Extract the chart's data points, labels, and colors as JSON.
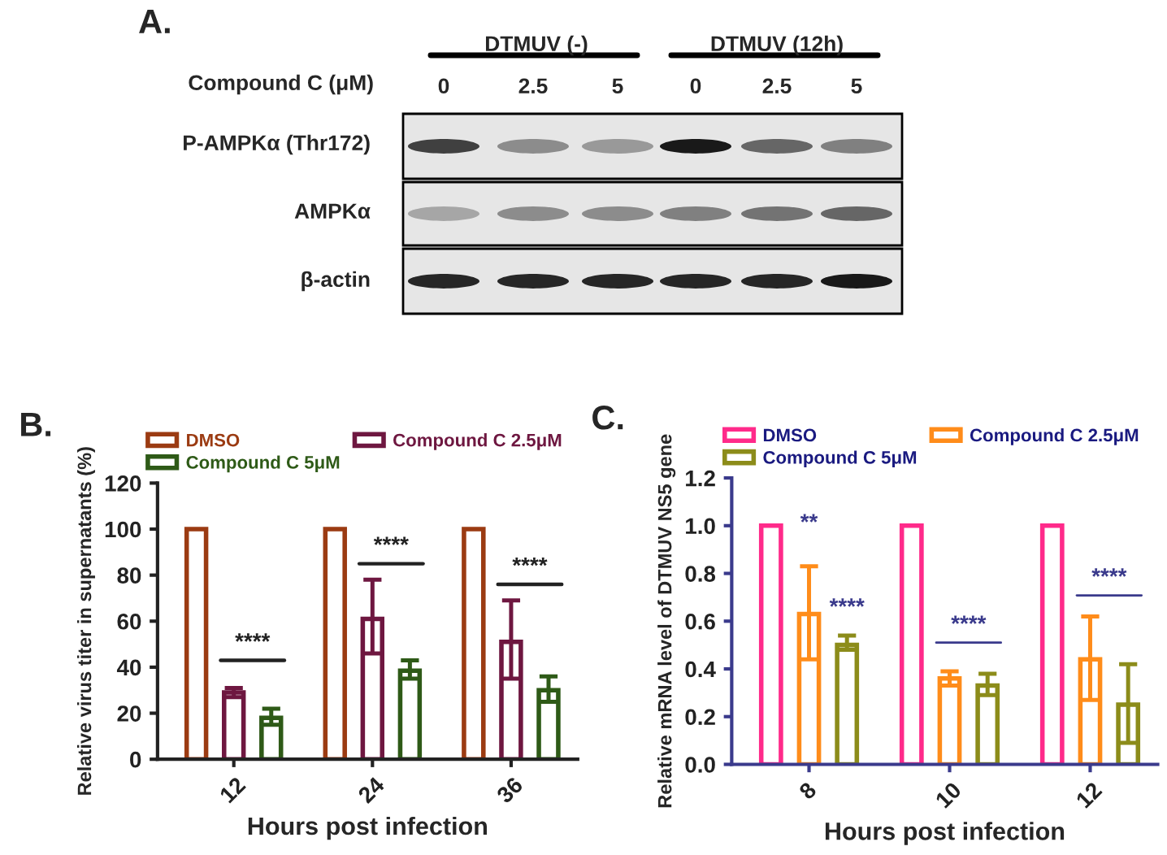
{
  "chart_data": [
    {
      "type": "other",
      "title": "A.",
      "annotations": [
        "DTMUV (-)",
        "DTMUV (12h)",
        "Compound C (μM)",
        "0",
        "2.5",
        "5",
        "0",
        "2.5",
        "5",
        "P-AMPKα (Thr172)",
        "AMPKα",
        "β-actin"
      ]
    },
    {
      "type": "bar",
      "title": "B.",
      "xlabel": "Hours post infection",
      "ylabel": "Relative virus titer in supernatants (%)",
      "categories": [
        "12",
        "24",
        "36"
      ],
      "series": [
        {
          "name": "DMSO",
          "color": "#9b3b12",
          "values": [
            100,
            100,
            100
          ]
        },
        {
          "name": "Compound C 2.5μM",
          "color": "#6e1740",
          "values": [
            29,
            61,
            51
          ],
          "errors": [
            [
              27,
              31
            ],
            [
              46,
              78
            ],
            [
              35,
              69
            ]
          ]
        },
        {
          "name": "Compound C 5μM",
          "color": "#2e5a17",
          "values": [
            18,
            38.5,
            30
          ],
          "errors": [
            [
              15,
              22
            ],
            [
              35,
              43
            ],
            [
              25,
              36
            ]
          ]
        }
      ],
      "ylim": [
        0,
        120
      ],
      "yticks": [
        0,
        20,
        40,
        60,
        80,
        100,
        120
      ],
      "legend": "top",
      "grid": false,
      "annotations": [
        "****",
        "****",
        "****"
      ]
    },
    {
      "type": "bar",
      "title": "C.",
      "xlabel": "Hours post infection",
      "ylabel": "Relative mRNA level of DTMUV NS5 gene",
      "categories": [
        "8",
        "10",
        "12"
      ],
      "series": [
        {
          "name": "DMSO",
          "color": "#ff2a8a",
          "values": [
            1,
            1,
            1
          ]
        },
        {
          "name": "Compound C 2.5μM",
          "color": "#ff8c1a",
          "values": [
            0.63,
            0.36,
            0.44
          ],
          "errors": [
            [
              0.44,
              0.83
            ],
            [
              0.33,
              0.39
            ],
            [
              0.27,
              0.62
            ]
          ]
        },
        {
          "name": "Compound C 5μM",
          "color": "#8c8c1a",
          "values": [
            0.5,
            0.33,
            0.25
          ],
          "errors": [
            [
              0.48,
              0.54
            ],
            [
              0.29,
              0.38
            ],
            [
              0.09,
              0.42
            ]
          ]
        }
      ],
      "ylim": [
        0,
        1.2
      ],
      "yticks": [
        {
          "value": 0,
          "label": "0.0"
        },
        0.2,
        0.4,
        0.6,
        0.8,
        {
          "value": 1,
          "label": "1.0"
        },
        1.2
      ],
      "legend": "top",
      "grid": false,
      "annotations": [
        "**",
        "****",
        "****",
        "****"
      ]
    }
  ]
}
